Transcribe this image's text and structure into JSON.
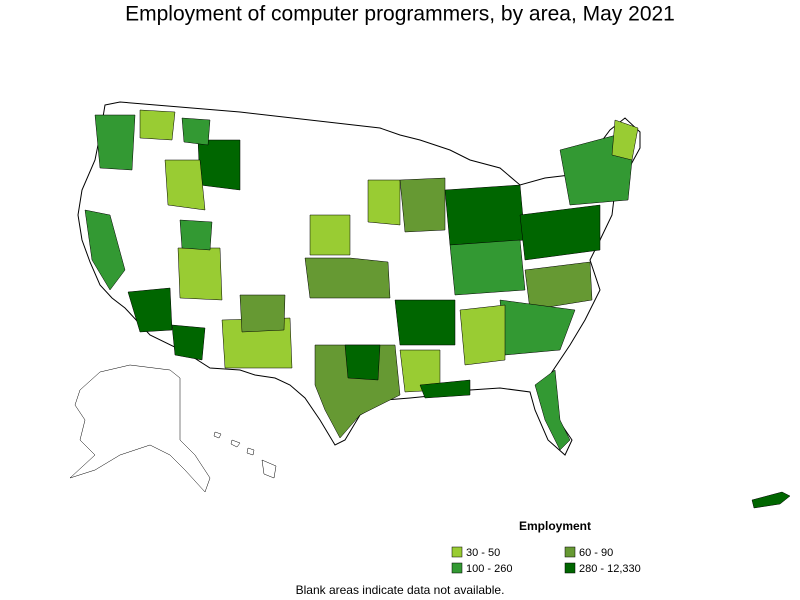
{
  "title": "Employment of computer programmers, by area, May 2021",
  "legend": {
    "title": "Employment",
    "items": [
      {
        "label": "30 - 50",
        "color": "#99cc33"
      },
      {
        "label": "60 - 90",
        "color": "#669933"
      },
      {
        "label": "100 - 260",
        "color": "#339933"
      },
      {
        "label": "280 - 12,330",
        "color": "#006600"
      }
    ]
  },
  "note": "Blank areas indicate data not available."
}
